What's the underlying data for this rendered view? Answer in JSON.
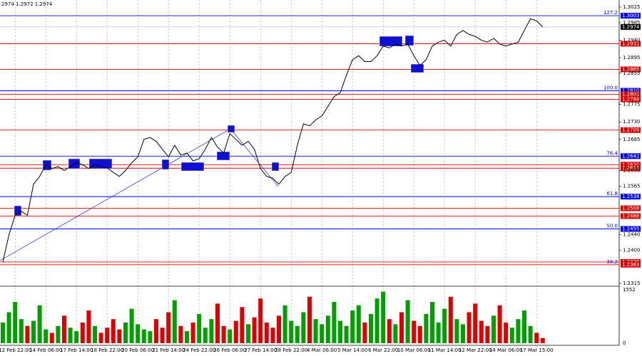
{
  "header": "2974 1.2972 1.2974",
  "chart_data": {
    "type": "line",
    "categories": [
      null,
      null,
      "12 Feb 22:00",
      null,
      null,
      null,
      null,
      "14 Feb 06:00",
      null,
      null,
      null,
      null,
      "17 Feb 14:00",
      null,
      null,
      null,
      null,
      "18 Feb 22:00",
      null,
      null,
      null,
      null,
      "20 Feb 06:00",
      null,
      null,
      null,
      null,
      "21 Feb 14:00",
      null,
      null,
      null,
      null,
      "24 Feb 22:00",
      null,
      null,
      null,
      null,
      "26 Feb 06:00",
      null,
      null,
      null,
      null,
      "27 Feb 14:00",
      null,
      null,
      null,
      null,
      "28 Feb 22:00",
      null,
      null,
      null,
      null,
      "4 Mar 06:00",
      null,
      null,
      null,
      null,
      "5 Mar 14:00",
      null,
      null,
      null,
      null,
      "6 Mar 22:00",
      null,
      null,
      null,
      null,
      "10 Mar 06:00",
      null,
      null,
      null,
      null,
      "11 Mar 14:00",
      null,
      null,
      null,
      null,
      "12 Mar 22:00",
      null,
      null,
      null,
      null,
      "14 Mar 06:00",
      null,
      null,
      null,
      null,
      "17 Mar 15:00",
      null
    ],
    "series": [
      {
        "color": "#000000",
        "values": [
          1.237,
          1.244,
          1.249,
          1.25,
          1.249,
          1.257,
          1.259,
          1.262,
          1.261,
          1.2615,
          1.2605,
          1.2615,
          1.2625,
          1.262,
          1.261,
          1.262,
          1.2615,
          1.2612,
          1.26,
          1.259,
          1.2605,
          1.2625,
          1.264,
          1.2685,
          1.269,
          1.268,
          1.266,
          1.264,
          1.267,
          1.2645,
          1.265,
          1.263,
          1.2635,
          1.266,
          1.269,
          1.2665,
          1.265,
          1.27,
          1.2685,
          1.267,
          1.268,
          1.266,
          1.261,
          1.259,
          1.2585,
          1.257,
          1.259,
          1.26,
          1.267,
          1.2725,
          1.272,
          1.2735,
          1.2745,
          1.277,
          1.2795,
          1.2805,
          1.285,
          1.289,
          1.29,
          1.2885,
          1.2885,
          1.29,
          1.2925,
          1.292,
          1.293,
          1.2925,
          1.293,
          1.29,
          1.2875,
          1.289,
          1.2925,
          1.2935,
          1.294,
          1.2925,
          1.2955,
          1.2965,
          1.2955,
          1.295,
          1.294,
          1.2935,
          1.2945,
          1.293,
          1.2925,
          1.293,
          1.2935,
          1.2965,
          1.2995,
          1.299,
          1.2974
        ]
      }
    ],
    "ylim": [
      1.2315,
      1.3025
    ],
    "yticks": [
      1.3025,
      1.2985,
      {
        "value": 1.294,
        "label": "1.2940"
      },
      1.2895,
      1.2855,
      1.2775,
      {
        "value": 1.273,
        "label": "1.2730"
      },
      1.2685,
      1.2605,
      1.2565,
      {
        "value": 1.244,
        "label": "1.2440"
      },
      {
        "value": 1.24,
        "label": "1.2400"
      },
      1.2315
    ],
    "levels": [
      {
        "value": 1.3003,
        "color": "#0000ff",
        "fib": "127.2"
      },
      {
        "value": 1.2931,
        "color": "#e00000"
      },
      {
        "value": 1.2865,
        "color": "#e00000"
      },
      {
        "value": 1.281,
        "label": "1.2810",
        "color": "#0000ff",
        "fib": "100.0"
      },
      {
        "value": 1.2801,
        "color": "#e00000"
      },
      {
        "value": 1.2788,
        "color": "#e00000"
      },
      {
        "value": 1.2709,
        "color": "#e00000"
      },
      {
        "value": 1.2642,
        "color": "#0000ff",
        "fib": "76.4"
      },
      {
        "value": 1.262,
        "label": "1.2620",
        "color": "#e00000"
      },
      {
        "value": 1.2611,
        "color": "#e00000"
      },
      {
        "value": 1.2538,
        "color": "#0000ff",
        "fib": "61.8"
      },
      {
        "value": 1.2508,
        "color": "#e00000"
      },
      {
        "value": 1.2488,
        "color": "#e00000"
      },
      {
        "value": 1.2455,
        "color": "#0000ff",
        "fib": "50.0"
      },
      {
        "value": 1.237,
        "label": "1.2370",
        "color": "#e00000"
      },
      {
        "value": 1.2363,
        "color": "#e00000",
        "fib": "38.2"
      }
    ],
    "volume": [
      600,
      900,
      1200,
      700,
      500,
      650,
      1100,
      400,
      300,
      500,
      800,
      450,
      350,
      600,
      950,
      500,
      300,
      450,
      700,
      400,
      600,
      1000,
      550,
      400,
      350,
      700,
      450,
      900,
      1250,
      500,
      350,
      600,
      850,
      450,
      700,
      1150,
      500,
      400,
      650,
      1050,
      550,
      750,
      1300,
      600,
      450,
      800,
      1100,
      650,
      500,
      900,
      1350,
      700,
      550,
      800,
      1200,
      650,
      500,
      950,
      1100,
      600,
      850,
      1300,
      1500,
      700,
      550,
      900,
      1250,
      650,
      500,
      850,
      1200,
      600,
      1000,
      1350,
      700,
      550,
      900,
      1150,
      650,
      500,
      800,
      1100,
      600,
      450,
      700,
      950,
      500,
      300,
      150
    ],
    "volume_ylim": [
      0,
      1552
    ],
    "volume_colors": [
      "#00a000",
      "#e00000"
    ]
  }
}
